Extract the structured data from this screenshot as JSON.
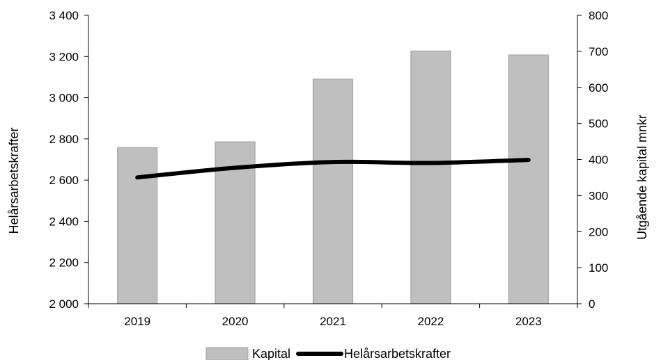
{
  "chart_data": {
    "type": "bar",
    "title": "",
    "categories": [
      "2019",
      "2020",
      "2021",
      "2022",
      "2023"
    ],
    "series": [
      {
        "name": "Kapital",
        "type": "bar",
        "axis": "right",
        "values": [
          433,
          449,
          623,
          701,
          690
        ],
        "color": "#bfbfbf"
      },
      {
        "name": "Helårsarbetskrafter",
        "type": "line",
        "axis": "left",
        "values": [
          2613,
          2660,
          2688,
          2683,
          2698
        ],
        "color": "#000000"
      }
    ],
    "y_left": {
      "label": "Helårsarbetskrafter",
      "min": 2000,
      "max": 3400,
      "ticks": [
        "2 000",
        "2 200",
        "2 400",
        "2 600",
        "2 800",
        "3 000",
        "3 200",
        "3 400"
      ]
    },
    "y_right": {
      "label": "Utgående kapital mnkr",
      "min": 0,
      "max": 800,
      "ticks": [
        "0",
        "100",
        "200",
        "300",
        "400",
        "500",
        "600",
        "700",
        "800"
      ]
    },
    "grid": false,
    "legend_position": "bottom"
  }
}
